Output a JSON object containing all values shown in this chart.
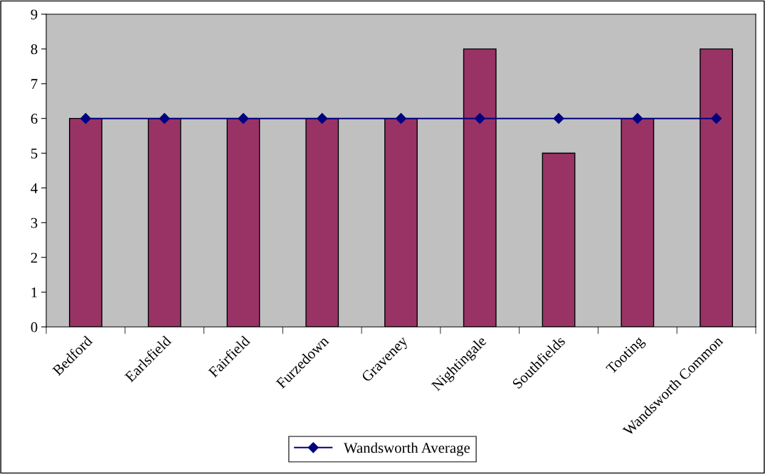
{
  "chart_data": {
    "type": "bar",
    "categories": [
      "Bedford",
      "Earlsfield",
      "Fairfield",
      "Furzedown",
      "Graveney",
      "Nightingale",
      "Southfields",
      "Tooting",
      "Wandsworth Common"
    ],
    "series": [
      {
        "color": "#993366",
        "values": [
          6,
          6,
          6,
          6,
          6,
          8,
          5,
          6,
          8
        ]
      },
      {
        "type": "line",
        "name": "Wandsworth Average",
        "color": "#000080",
        "values": [
          6,
          6,
          6,
          6,
          6,
          6,
          6,
          6,
          6
        ],
        "marker": "diamond",
        "line_style": "solid"
      }
    ],
    "ylim": [
      0,
      9
    ],
    "yticks": [
      0,
      1,
      2,
      3,
      4,
      5,
      6,
      7,
      8,
      9
    ],
    "grid": false,
    "legend": "bottom"
  }
}
